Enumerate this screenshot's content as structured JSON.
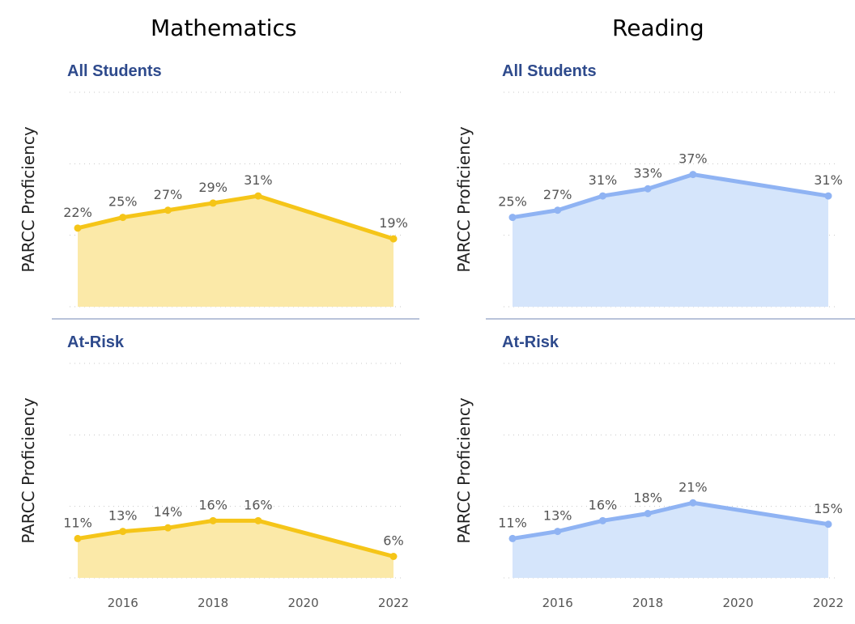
{
  "columns": {
    "math": "Mathematics",
    "reading": "Reading"
  },
  "colors": {
    "math_line": "#f5c518",
    "math_fill": "#fbe9a8",
    "reading_line": "#8fb3f3",
    "reading_fill": "#d5e5fb",
    "panel_title": "#2e4a8c",
    "divider": "#8f9fc4"
  },
  "chart_data": [
    {
      "type": "area",
      "subject": "Mathematics",
      "title": "All Students",
      "ylabel": "PARCC Proficiency",
      "x": [
        2015,
        2016,
        2017,
        2018,
        2019,
        2022
      ],
      "values": [
        22,
        25,
        27,
        29,
        31,
        19
      ],
      "labels": [
        "22%",
        "25%",
        "27%",
        "29%",
        "31%",
        "19%"
      ],
      "x_ticks": [
        "2016",
        "2018",
        "2020",
        "2022"
      ],
      "ylim": [
        0,
        60
      ],
      "grid": true
    },
    {
      "type": "area",
      "subject": "Reading",
      "title": "All Students",
      "ylabel": "PARCC Proficiency",
      "x": [
        2015,
        2016,
        2017,
        2018,
        2019,
        2022
      ],
      "values": [
        25,
        27,
        31,
        33,
        37,
        31
      ],
      "labels": [
        "25%",
        "27%",
        "31%",
        "33%",
        "37%",
        "31%"
      ],
      "x_ticks": [
        "2016",
        "2018",
        "2020",
        "2022"
      ],
      "ylim": [
        0,
        60
      ],
      "grid": true
    },
    {
      "type": "area",
      "subject": "Mathematics",
      "title": "At-Risk",
      "ylabel": "PARCC Proficiency",
      "x": [
        2015,
        2016,
        2017,
        2018,
        2019,
        2022
      ],
      "values": [
        11,
        13,
        14,
        16,
        16,
        6
      ],
      "labels": [
        "11%",
        "13%",
        "14%",
        "16%",
        "16%",
        "6%"
      ],
      "x_ticks": [
        "2016",
        "2018",
        "2020",
        "2022"
      ],
      "ylim": [
        0,
        60
      ],
      "grid": true
    },
    {
      "type": "area",
      "subject": "Reading",
      "title": "At-Risk",
      "ylabel": "PARCC Proficiency",
      "x": [
        2015,
        2016,
        2017,
        2018,
        2019,
        2022
      ],
      "values": [
        11,
        13,
        16,
        18,
        21,
        15
      ],
      "labels": [
        "11%",
        "13%",
        "16%",
        "18%",
        "21%",
        "15%"
      ],
      "x_ticks": [
        "2016",
        "2018",
        "2020",
        "2022"
      ],
      "ylim": [
        0,
        60
      ],
      "grid": true
    }
  ]
}
